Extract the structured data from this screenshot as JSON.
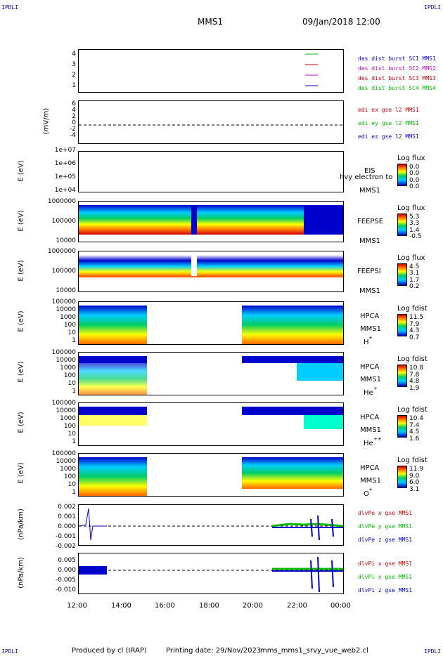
{
  "header": {
    "corner_label": "IPDLI",
    "title": "MMS1",
    "datetime": "09/Jan/2018 12:00"
  },
  "footer": {
    "produced_by": "Produced by cl (IRAP)",
    "printing": "Printing date: 29/Nov/2023",
    "file": "mms_mms1_srvy_vue_web2.cl"
  },
  "colors": {
    "red": "#cc0000",
    "green": "#00bb00",
    "blue": "#0000cc",
    "magenta": "#cc00cc"
  },
  "x_axis": {
    "ticks": [
      "12:00",
      "14:00",
      "16:00",
      "18:00",
      "20:00",
      "22:00",
      "00:00"
    ]
  },
  "panels": {
    "burst": {
      "ticks": [
        "4",
        "3",
        "2",
        "1"
      ],
      "legend": [
        "des dist burst SC1 MMS1",
        "des dist burst SC2 MMS2",
        "des dist burst SC3 MMS3",
        "des dist burst SC4 MMS4"
      ]
    },
    "edi": {
      "ylabel": "(mV/m)",
      "ticks": [
        "6",
        "4",
        "2",
        "0",
        "-2",
        "-4"
      ],
      "legend": [
        "edi ex gse l2 MMS1",
        "edi ey gse l2 MMS1",
        "edi ez gse l2 MMS1"
      ]
    },
    "eis": {
      "ylabel": "E (eV)",
      "ticks": [
        "1e+07",
        "1e+06",
        "1e+05",
        "1e+04"
      ],
      "label1": "EIS",
      "label2": "hvy electron to",
      "label3": "MMS1",
      "cb_title": "Log flux",
      "cb_ticks": [
        "0.0",
        "0.0",
        "0.0",
        "0.0"
      ]
    },
    "feepse": {
      "ylabel": "E (eV)",
      "ticks": [
        "1000000",
        "100000",
        "10000"
      ],
      "label1": "FEEPSE",
      "label2": "MMS1",
      "cb_title": "Log flux",
      "cb_ticks": [
        "5.3",
        "3.3",
        "1.4",
        "-0.5"
      ]
    },
    "feepsi": {
      "ylabel": "E (eV)",
      "ticks": [
        "1000000",
        "100000",
        "10000"
      ],
      "label1": "FEEPSI",
      "label2": "MMS1",
      "cb_title": "Log flux",
      "cb_ticks": [
        "4.5",
        "3.1",
        "1.7",
        "0.2"
      ]
    },
    "hpca_h": {
      "ylabel": "E (eV)",
      "ticks": [
        "100000",
        "10000",
        "1000",
        "100",
        "10",
        "1"
      ],
      "label1": "HPCA",
      "label2": "MMS1",
      "species": "H",
      "species_sup": "+",
      "cb_title": "Log fdist",
      "cb_ticks": [
        "11.5",
        "7.9",
        "4.3",
        "0.7"
      ]
    },
    "hpca_he": {
      "ylabel": "E (eV)",
      "ticks": [
        "100000",
        "10000",
        "1000",
        "100",
        "10",
        "1"
      ],
      "label1": "HPCA",
      "label2": "MMS1",
      "species": "He",
      "species_sup": "+",
      "cb_title": "Log fdist",
      "cb_ticks": [
        "10.8",
        "7.8",
        "4.8",
        "1.9"
      ]
    },
    "hpca_he2": {
      "ylabel": "E (eV)",
      "ticks": [
        "100000",
        "10000",
        "1000",
        "100",
        "10",
        "1"
      ],
      "label1": "HPCA",
      "label2": "MMS1",
      "species": "He",
      "species_sup": "++",
      "cb_title": "Log fdist",
      "cb_ticks": [
        "10.4",
        "7.4",
        "4.5",
        "1.6"
      ]
    },
    "hpca_o": {
      "ylabel": "E (eV)",
      "ticks": [
        "100000",
        "10000",
        "1000",
        "100",
        "10",
        "1"
      ],
      "label1": "HPCA",
      "label2": "MMS1",
      "species": "O",
      "species_sup": "+",
      "cb_title": "Log fdist",
      "cb_ticks": [
        "11.9",
        "9.0",
        "6.0",
        "3.1"
      ]
    },
    "divpe": {
      "ylabel": "(nPa/km)",
      "ticks": [
        "0.002",
        "0.001",
        "0.000",
        "-0.001",
        "-0.002"
      ],
      "legend": [
        "dlvPe x gse MMS1",
        "dlvPe y gse MMS1",
        "dlvPe z gse MMS1"
      ]
    },
    "divpi": {
      "ylabel": "(nPa/km)",
      "ticks": [
        "0.005",
        "0.000",
        "-0.005",
        "-0.010"
      ],
      "legend": [
        "dlvPi x gse MMS1",
        "dlvPi y gse MMS1",
        "dlvPi z gse MMS1"
      ]
    }
  }
}
